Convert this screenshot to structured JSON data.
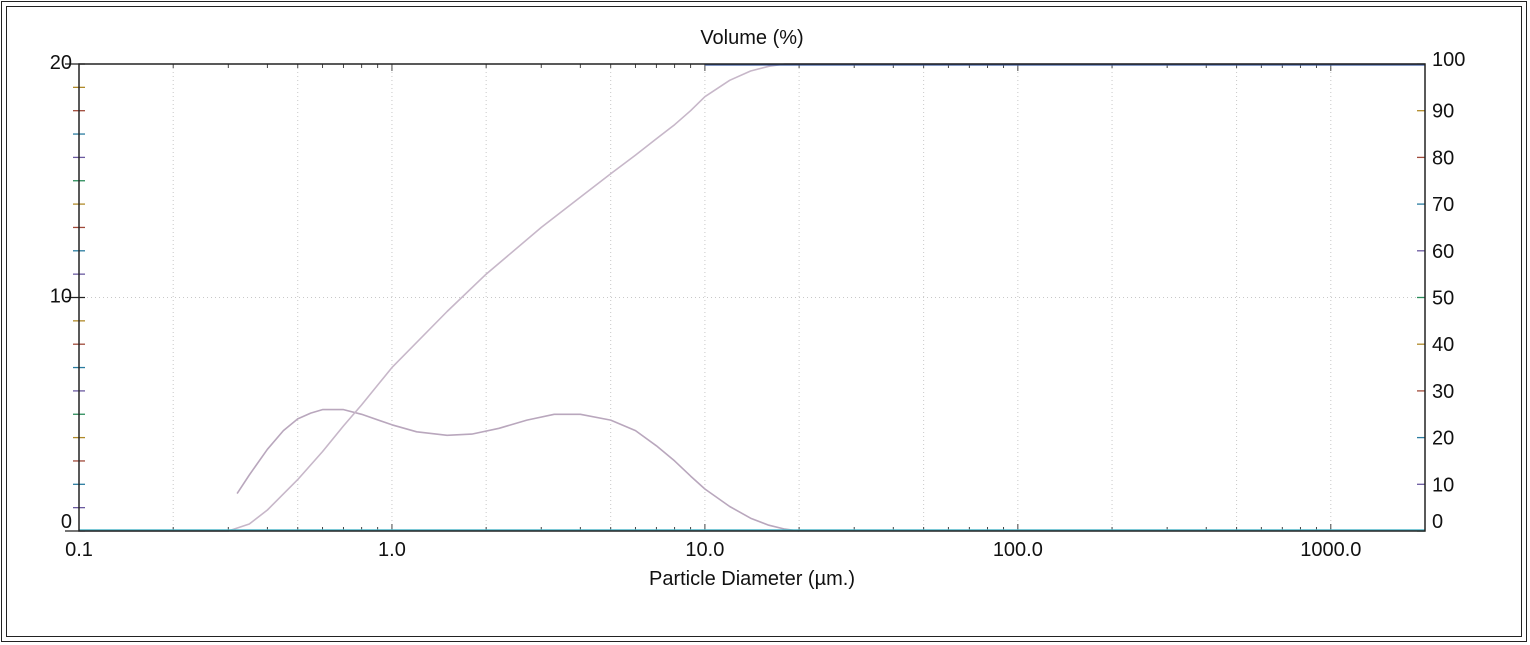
{
  "chart_data": {
    "type": "line",
    "title": "Volume (%)",
    "xlabel": "Particle Diameter (µm.)",
    "x_scale": "log",
    "xlim": [
      0.1,
      2000
    ],
    "ylim_left": [
      0,
      20
    ],
    "ylim_right": [
      0,
      100
    ],
    "x_tick_labels": [
      "0.1",
      "1.0",
      "10.0",
      "100.0",
      "1000.0"
    ],
    "y_left_tick_labels": [
      "0",
      "10",
      "20"
    ],
    "y_right_tick_labels": [
      "0",
      "10",
      "20",
      "30",
      "40",
      "50",
      "60",
      "70",
      "80",
      "90",
      "100"
    ],
    "grid": true,
    "series": [
      {
        "axis": "left",
        "color": "#b9a7bd",
        "x": [
          0.32,
          0.35,
          0.4,
          0.45,
          0.5,
          0.55,
          0.6,
          0.7,
          0.8,
          1.0,
          1.2,
          1.5,
          1.8,
          2.2,
          2.7,
          3.3,
          4.0,
          5.0,
          6.0,
          7.0,
          8.0,
          9.0,
          10.0,
          12.0,
          14.0,
          16.0,
          18.0,
          20.0
        ],
        "y": [
          1.6,
          2.4,
          3.5,
          4.3,
          4.8,
          5.05,
          5.2,
          5.2,
          5.0,
          4.55,
          4.25,
          4.1,
          4.15,
          4.4,
          4.75,
          5.0,
          5.0,
          4.75,
          4.3,
          3.65,
          3.0,
          2.35,
          1.8,
          1.05,
          0.55,
          0.25,
          0.08,
          0.0
        ]
      },
      {
        "axis": "right",
        "color": "#c7b7c9",
        "x": [
          0.1,
          0.3,
          0.35,
          0.4,
          0.5,
          0.6,
          0.7,
          0.8,
          1.0,
          1.5,
          2.0,
          3.0,
          4.0,
          5.0,
          6.0,
          7.0,
          8.0,
          9.0,
          10.0,
          12.0,
          14.0,
          16.0,
          18.0,
          20.0,
          2000
        ],
        "y": [
          0,
          0,
          1.5,
          4.5,
          11,
          17,
          22.5,
          27,
          35,
          47,
          55,
          65,
          71.5,
          76.5,
          80.5,
          84,
          87,
          90,
          93,
          96.5,
          98.5,
          99.5,
          100,
          100,
          100
        ]
      }
    ]
  }
}
